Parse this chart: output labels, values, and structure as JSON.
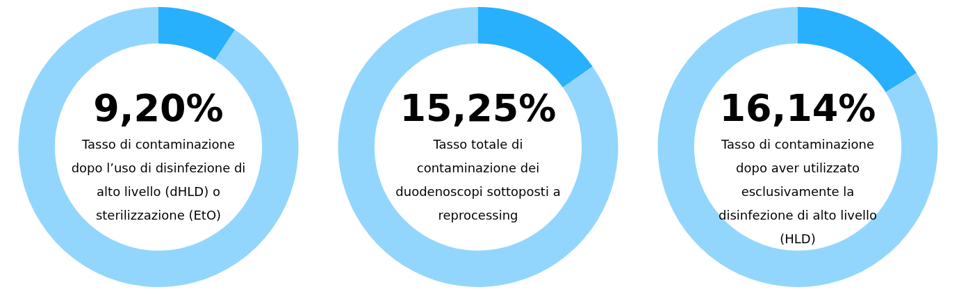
{
  "chart_data": [
    {
      "type": "donut",
      "categories": [
        null,
        null
      ],
      "values": [
        9.2,
        90.8
      ],
      "colors": [
        "#29b0fc",
        "#93d6fd"
      ],
      "value_labels": [
        "9,20%",
        null
      ],
      "annotations": [
        "Tasso di contaminazione dopo l’uso di disinfezione di alto livello (dHLD) o sterilizzazione (EtO)"
      ]
    },
    {
      "type": "donut",
      "categories": [
        null,
        null
      ],
      "values": [
        15.25,
        84.75
      ],
      "colors": [
        "#29b0fc",
        "#93d6fd"
      ],
      "value_labels": [
        "15,25%",
        null
      ],
      "annotations": [
        "Tasso totale di contaminazione dei duodenoscopi sottoposti a reprocessing"
      ]
    },
    {
      "type": "donut",
      "categories": [
        null,
        null
      ],
      "values": [
        16.14,
        83.86
      ],
      "colors": [
        "#29b0fc",
        "#93d6fd"
      ],
      "value_labels": [
        "16,14%",
        null
      ],
      "annotations": [
        "Tasso di contaminazione dopo aver utilizzato esclusivamente la disinfezione di alto livello (HLD)"
      ]
    }
  ]
}
